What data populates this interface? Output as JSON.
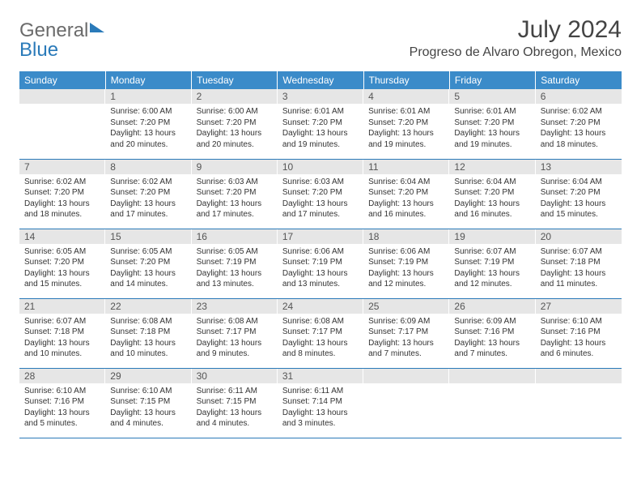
{
  "brand": {
    "general": "General",
    "blue": "Blue"
  },
  "title": "July 2024",
  "location": "Progreso de Alvaro Obregon, Mexico",
  "colors": {
    "header_bg": "#3b8bc9",
    "header_text": "#ffffff",
    "daynum_bg": "#e6e6e6",
    "border": "#2a7ab9",
    "logo_gray": "#6b6b6b",
    "logo_blue": "#2a7ab9"
  },
  "days_of_week": [
    "Sunday",
    "Monday",
    "Tuesday",
    "Wednesday",
    "Thursday",
    "Friday",
    "Saturday"
  ],
  "first_weekday_index": 1,
  "num_days": 31,
  "cells": {
    "1": {
      "sunrise": "Sunrise: 6:00 AM",
      "sunset": "Sunset: 7:20 PM",
      "daylight": "Daylight: 13 hours and 20 minutes."
    },
    "2": {
      "sunrise": "Sunrise: 6:00 AM",
      "sunset": "Sunset: 7:20 PM",
      "daylight": "Daylight: 13 hours and 20 minutes."
    },
    "3": {
      "sunrise": "Sunrise: 6:01 AM",
      "sunset": "Sunset: 7:20 PM",
      "daylight": "Daylight: 13 hours and 19 minutes."
    },
    "4": {
      "sunrise": "Sunrise: 6:01 AM",
      "sunset": "Sunset: 7:20 PM",
      "daylight": "Daylight: 13 hours and 19 minutes."
    },
    "5": {
      "sunrise": "Sunrise: 6:01 AM",
      "sunset": "Sunset: 7:20 PM",
      "daylight": "Daylight: 13 hours and 19 minutes."
    },
    "6": {
      "sunrise": "Sunrise: 6:02 AM",
      "sunset": "Sunset: 7:20 PM",
      "daylight": "Daylight: 13 hours and 18 minutes."
    },
    "7": {
      "sunrise": "Sunrise: 6:02 AM",
      "sunset": "Sunset: 7:20 PM",
      "daylight": "Daylight: 13 hours and 18 minutes."
    },
    "8": {
      "sunrise": "Sunrise: 6:02 AM",
      "sunset": "Sunset: 7:20 PM",
      "daylight": "Daylight: 13 hours and 17 minutes."
    },
    "9": {
      "sunrise": "Sunrise: 6:03 AM",
      "sunset": "Sunset: 7:20 PM",
      "daylight": "Daylight: 13 hours and 17 minutes."
    },
    "10": {
      "sunrise": "Sunrise: 6:03 AM",
      "sunset": "Sunset: 7:20 PM",
      "daylight": "Daylight: 13 hours and 17 minutes."
    },
    "11": {
      "sunrise": "Sunrise: 6:04 AM",
      "sunset": "Sunset: 7:20 PM",
      "daylight": "Daylight: 13 hours and 16 minutes."
    },
    "12": {
      "sunrise": "Sunrise: 6:04 AM",
      "sunset": "Sunset: 7:20 PM",
      "daylight": "Daylight: 13 hours and 16 minutes."
    },
    "13": {
      "sunrise": "Sunrise: 6:04 AM",
      "sunset": "Sunset: 7:20 PM",
      "daylight": "Daylight: 13 hours and 15 minutes."
    },
    "14": {
      "sunrise": "Sunrise: 6:05 AM",
      "sunset": "Sunset: 7:20 PM",
      "daylight": "Daylight: 13 hours and 15 minutes."
    },
    "15": {
      "sunrise": "Sunrise: 6:05 AM",
      "sunset": "Sunset: 7:20 PM",
      "daylight": "Daylight: 13 hours and 14 minutes."
    },
    "16": {
      "sunrise": "Sunrise: 6:05 AM",
      "sunset": "Sunset: 7:19 PM",
      "daylight": "Daylight: 13 hours and 13 minutes."
    },
    "17": {
      "sunrise": "Sunrise: 6:06 AM",
      "sunset": "Sunset: 7:19 PM",
      "daylight": "Daylight: 13 hours and 13 minutes."
    },
    "18": {
      "sunrise": "Sunrise: 6:06 AM",
      "sunset": "Sunset: 7:19 PM",
      "daylight": "Daylight: 13 hours and 12 minutes."
    },
    "19": {
      "sunrise": "Sunrise: 6:07 AM",
      "sunset": "Sunset: 7:19 PM",
      "daylight": "Daylight: 13 hours and 12 minutes."
    },
    "20": {
      "sunrise": "Sunrise: 6:07 AM",
      "sunset": "Sunset: 7:18 PM",
      "daylight": "Daylight: 13 hours and 11 minutes."
    },
    "21": {
      "sunrise": "Sunrise: 6:07 AM",
      "sunset": "Sunset: 7:18 PM",
      "daylight": "Daylight: 13 hours and 10 minutes."
    },
    "22": {
      "sunrise": "Sunrise: 6:08 AM",
      "sunset": "Sunset: 7:18 PM",
      "daylight": "Daylight: 13 hours and 10 minutes."
    },
    "23": {
      "sunrise": "Sunrise: 6:08 AM",
      "sunset": "Sunset: 7:17 PM",
      "daylight": "Daylight: 13 hours and 9 minutes."
    },
    "24": {
      "sunrise": "Sunrise: 6:08 AM",
      "sunset": "Sunset: 7:17 PM",
      "daylight": "Daylight: 13 hours and 8 minutes."
    },
    "25": {
      "sunrise": "Sunrise: 6:09 AM",
      "sunset": "Sunset: 7:17 PM",
      "daylight": "Daylight: 13 hours and 7 minutes."
    },
    "26": {
      "sunrise": "Sunrise: 6:09 AM",
      "sunset": "Sunset: 7:16 PM",
      "daylight": "Daylight: 13 hours and 7 minutes."
    },
    "27": {
      "sunrise": "Sunrise: 6:10 AM",
      "sunset": "Sunset: 7:16 PM",
      "daylight": "Daylight: 13 hours and 6 minutes."
    },
    "28": {
      "sunrise": "Sunrise: 6:10 AM",
      "sunset": "Sunset: 7:16 PM",
      "daylight": "Daylight: 13 hours and 5 minutes."
    },
    "29": {
      "sunrise": "Sunrise: 6:10 AM",
      "sunset": "Sunset: 7:15 PM",
      "daylight": "Daylight: 13 hours and 4 minutes."
    },
    "30": {
      "sunrise": "Sunrise: 6:11 AM",
      "sunset": "Sunset: 7:15 PM",
      "daylight": "Daylight: 13 hours and 4 minutes."
    },
    "31": {
      "sunrise": "Sunrise: 6:11 AM",
      "sunset": "Sunset: 7:14 PM",
      "daylight": "Daylight: 13 hours and 3 minutes."
    }
  }
}
